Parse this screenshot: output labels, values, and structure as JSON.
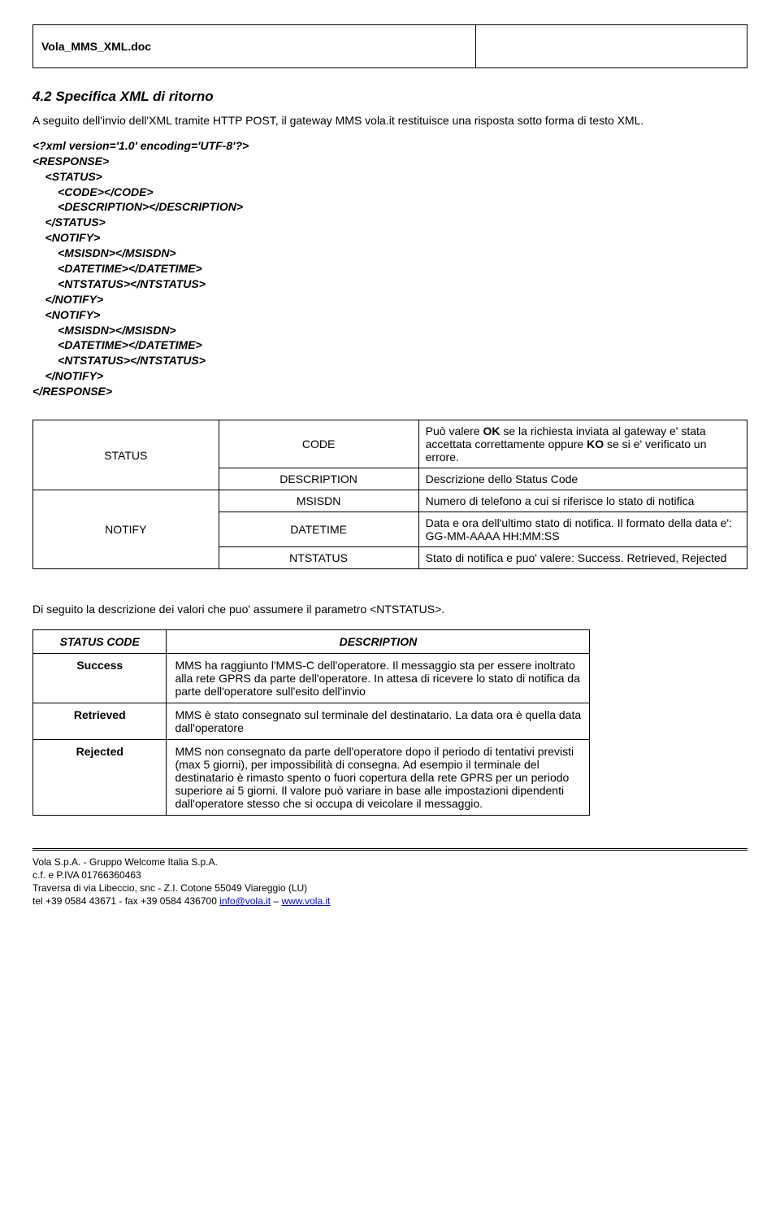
{
  "doc_title": "Vola_MMS_XML.doc",
  "section": {
    "number_title": "4.2 Specifica XML di ritorno",
    "intro": "A seguito dell'invio dell'XML tramite HTTP  POST, il gateway MMS vola.it restituisce una risposta sotto forma di testo XML."
  },
  "xml": {
    "l1": "<?xml version='1.0' encoding='UTF-8'?>",
    "l2": "<RESPONSE>",
    "l3": "    <STATUS>",
    "l4": "        <CODE></CODE>",
    "l5": "        <DESCRIPTION></DESCRIPTION>",
    "l6": "    </STATUS>",
    "l7": "    <NOTIFY>",
    "l8": "        <MSISDN></MSISDN>",
    "l9": "        <DATETIME></DATETIME>",
    "l10": "        <NTSTATUS></NTSTATUS>",
    "l11": "    </NOTIFY>",
    "l12": "    <NOTIFY>",
    "l13": "        <MSISDN></MSISDN>",
    "l14": "        <DATETIME></DATETIME>",
    "l15": "        <NTSTATUS></NTSTATUS>",
    "l16": "    </NOTIFY>",
    "l17": "</RESPONSE>"
  },
  "table1": {
    "r0c0": "STATUS",
    "r0c1": "CODE",
    "r0c2_pre": "Può valere ",
    "r0c2_b1": "OK",
    "r0c2_mid": " se la richiesta inviata al gateway e' stata accettata correttamente oppure ",
    "r0c2_b2": "KO",
    "r0c2_post": " se si e' verificato un errore.",
    "r1c1": "DESCRIPTION",
    "r1c2": "Descrizione dello Status Code",
    "r2c0": "NOTIFY",
    "r2c1": "MSISDN",
    "r2c2": "Numero di telefono a cui si riferisce lo stato di notifica",
    "r3c1": "DATETIME",
    "r3c2": "Data e ora dell'ultimo stato di notifica. Il formato della data e': GG-MM-AAAA HH:MM:SS",
    "r4c1": "NTSTATUS",
    "r4c2": "Stato di notifica e puo' valere: Success. Retrieved, Rejected"
  },
  "between": "Di seguito la descrizione dei valori che puo' assumere il parametro <NTSTATUS>.",
  "table2": {
    "h0": "STATUS CODE",
    "h1": "DESCRIPTION",
    "r0c0": "Success",
    "r0c1": "MMS ha raggiunto l'MMS-C dell'operatore. Il messaggio sta per essere inoltrato alla rete GPRS da parte dell'operatore. In attesa di ricevere lo stato di notifica da parte dell'operatore sull'esito dell'invio",
    "r1c0": "Retrieved",
    "r1c1": "MMS è stato consegnato sul terminale del destinatario. La data ora è quella data dall'operatore",
    "r2c0": "Rejected",
    "r2c1": "MMS non consegnato da parte dell'operatore dopo il periodo di tentativi previsti (max 5 giorni), per impossibilità di consegna. Ad esempio il terminale del destinatario è rimasto spento o fuori copertura della rete GPRS per un periodo superiore ai 5 giorni. Il valore può variare in base alle impostazioni dipendenti dall'operatore stesso che si occupa di veicolare il messaggio."
  },
  "footer": {
    "l1": "Vola S.p.A. - Gruppo Welcome Italia S.p.A.",
    "l2": "c.f. e P.IVA 01766360463",
    "l3": "Traversa di via Libeccio, snc -  Z.I. Cotone 55049 Viareggio (LU)",
    "l4_pre": "tel +39 0584 43671 - fax  +39 0584 436700 ",
    "l4_link1": "info@vola.it",
    "l4_sep": " – ",
    "l4_link2": "www.vola.it"
  }
}
